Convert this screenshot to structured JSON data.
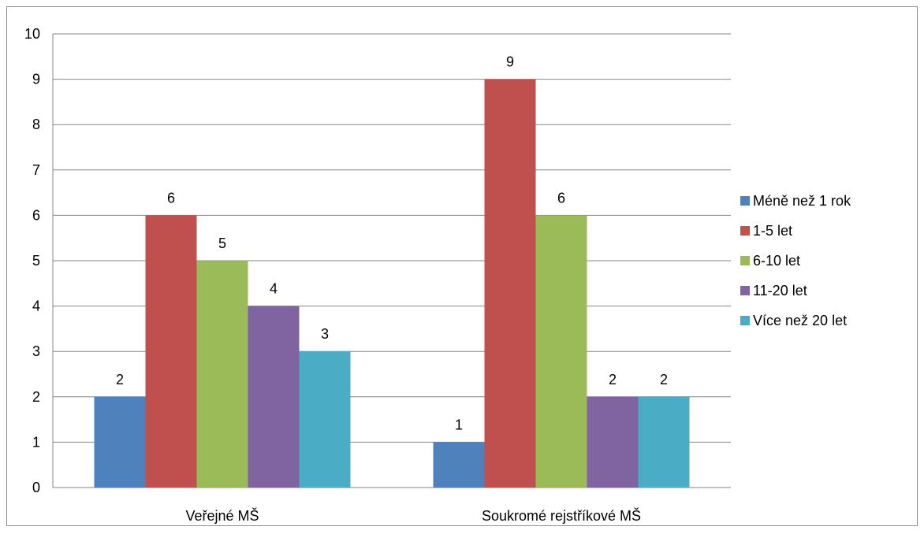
{
  "chart_data": {
    "type": "bar",
    "title": "",
    "xlabel": "",
    "ylabel": "",
    "ylim": [
      0,
      10
    ],
    "yticks": [
      0,
      1,
      2,
      3,
      4,
      5,
      6,
      7,
      8,
      9,
      10
    ],
    "grid": true,
    "legend_position": "right",
    "categories": [
      "Veřejné MŠ",
      "Soukromé rejstříkové MŠ"
    ],
    "series": [
      {
        "name": "Méně než 1 rok",
        "color": "#4f81bd",
        "values": [
          2,
          1
        ]
      },
      {
        "name": "1-5 let",
        "color": "#c0504d",
        "values": [
          6,
          9
        ]
      },
      {
        "name": "6-10 let",
        "color": "#9bbb59",
        "values": [
          5,
          6
        ]
      },
      {
        "name": "11-20 let",
        "color": "#8064a2",
        "values": [
          4,
          2
        ]
      },
      {
        "name": "Více než 20 let",
        "color": "#4bacc6",
        "values": [
          3,
          2
        ]
      }
    ],
    "data_labels": true
  }
}
